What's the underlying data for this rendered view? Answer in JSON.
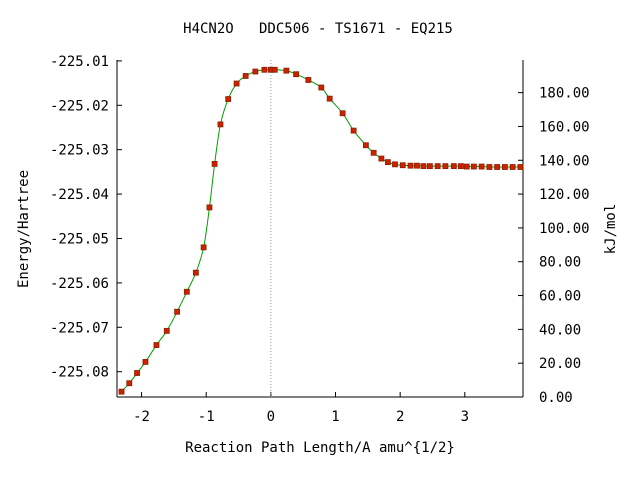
{
  "chart_data": {
    "type": "line",
    "title": "H4CN2O   DDC506 - TS1671 - EQ215",
    "xlabel": "Reaction Path Length/A amu^{1/2}",
    "ylabel": "Energy/Hartree",
    "y2label": "kJ/mol",
    "xlim": [
      -2.38,
      3.9
    ],
    "ylim": [
      -225.0857,
      -225.0098
    ],
    "y2lim": [
      0,
      199.3
    ],
    "x_ticks": [
      {
        "value": -2,
        "label": "-2"
      },
      {
        "value": -1,
        "label": "-1"
      },
      {
        "value": 0,
        "label": "0"
      },
      {
        "value": 1,
        "label": "1"
      },
      {
        "value": 2,
        "label": "2"
      },
      {
        "value": 3,
        "label": "3"
      }
    ],
    "y_ticks": [
      {
        "value": -225.01,
        "label": "-225.01"
      },
      {
        "value": -225.02,
        "label": "-225.02"
      },
      {
        "value": -225.03,
        "label": "-225.03"
      },
      {
        "value": -225.04,
        "label": "-225.04"
      },
      {
        "value": -225.05,
        "label": "-225.05"
      },
      {
        "value": -225.06,
        "label": "-225.06"
      },
      {
        "value": -225.07,
        "label": "-225.07"
      },
      {
        "value": -225.08,
        "label": "-225.08"
      }
    ],
    "y2_ticks": [
      {
        "value": 0,
        "label": "0.00"
      },
      {
        "value": 20,
        "label": "20.00"
      },
      {
        "value": 40,
        "label": "40.00"
      },
      {
        "value": 60,
        "label": "60.00"
      },
      {
        "value": 80,
        "label": "80.00"
      },
      {
        "value": 100,
        "label": "100.00"
      },
      {
        "value": 120,
        "label": "120.00"
      },
      {
        "value": 140,
        "label": "140.00"
      },
      {
        "value": 160,
        "label": "160.00"
      },
      {
        "value": 180,
        "label": "180.00"
      }
    ],
    "ts_marker_x": 0,
    "line_color": "#00a000",
    "marker_color": "#cc2200",
    "marker_edge_color": "#8b2000",
    "ts_line_color": "#999999",
    "series": [
      {
        "points": [
          [
            -2.31,
            -225.0845
          ],
          [
            -2.19,
            -225.0826
          ],
          [
            -2.07,
            -225.0803
          ],
          [
            -1.94,
            -225.0778
          ],
          [
            -1.77,
            -225.074
          ],
          [
            -1.61,
            -225.0708
          ],
          [
            -1.45,
            -225.0665
          ],
          [
            -1.3,
            -225.062
          ],
          [
            -1.16,
            -225.0577
          ],
          [
            -1.04,
            -225.052
          ],
          [
            -0.95,
            -225.043
          ],
          [
            -0.87,
            -225.0332
          ],
          [
            -0.78,
            -225.0243
          ],
          [
            -0.66,
            -225.0186
          ],
          [
            -0.53,
            -225.0151
          ],
          [
            -0.39,
            -225.0134
          ],
          [
            -0.24,
            -225.0124
          ],
          [
            -0.1,
            -225.012
          ],
          [
            0.0,
            -225.012
          ],
          [
            0.06,
            -225.012
          ],
          [
            0.24,
            -225.0122
          ],
          [
            0.39,
            -225.013
          ],
          [
            0.58,
            -225.0143
          ],
          [
            0.78,
            -225.016
          ],
          [
            0.91,
            -225.0185
          ],
          [
            1.11,
            -225.0218
          ],
          [
            1.28,
            -225.0257
          ],
          [
            1.47,
            -225.029
          ],
          [
            1.59,
            -225.0307
          ],
          [
            1.71,
            -225.032
          ],
          [
            1.81,
            -225.0328
          ],
          [
            1.92,
            -225.0333
          ],
          [
            2.04,
            -225.0335
          ],
          [
            2.16,
            -225.0336
          ],
          [
            2.26,
            -225.0336
          ],
          [
            2.36,
            -225.0337
          ],
          [
            2.46,
            -225.0337
          ],
          [
            2.58,
            -225.0337
          ],
          [
            2.7,
            -225.0337
          ],
          [
            2.83,
            -225.0337
          ],
          [
            2.94,
            -225.0337
          ],
          [
            3.03,
            -225.0338
          ],
          [
            3.14,
            -225.0338
          ],
          [
            3.26,
            -225.0338
          ],
          [
            3.38,
            -225.0339
          ],
          [
            3.5,
            -225.0339
          ],
          [
            3.62,
            -225.0339
          ],
          [
            3.74,
            -225.0339
          ],
          [
            3.86,
            -225.0339
          ]
        ]
      }
    ]
  }
}
